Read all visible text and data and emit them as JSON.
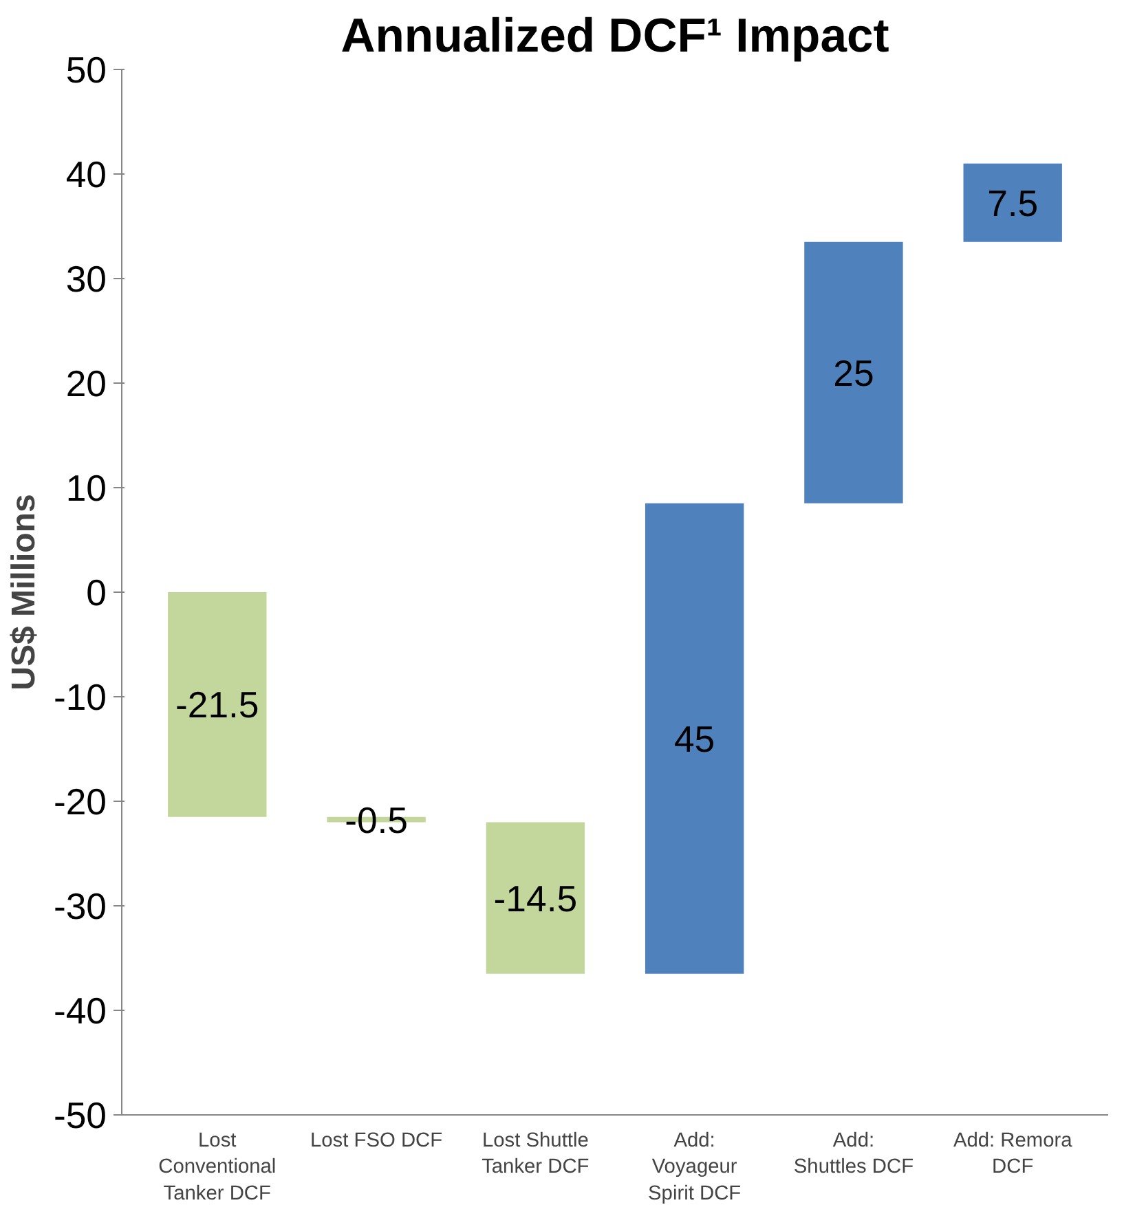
{
  "chart_data": {
    "type": "bar",
    "title": "Annualized DCF¹ Impact",
    "ylabel": "US$ Millions",
    "categories": [
      "Lost Conventional Tanker DCF",
      "Lost FSO DCF",
      "Lost Shuttle Tanker DCF",
      "Add: Voyageur Spirit DCF",
      "Add: Shuttles DCF",
      "Add: Remora DCF"
    ],
    "values": [
      -21.5,
      -0.5,
      -14.5,
      45,
      25,
      7.5
    ],
    "base": [
      0,
      -21.5,
      -22,
      -36.5,
      8.5,
      33.5
    ],
    "colors": [
      "#c3d69b",
      "#c3d69b",
      "#c3d69b",
      "#4f81bd",
      "#4f81bd",
      "#4f81bd"
    ],
    "ylim": [
      -50,
      50
    ],
    "yticks": [
      -50,
      -40,
      -30,
      -20,
      -10,
      0,
      10,
      20,
      30,
      40,
      50
    ],
    "grid": false,
    "data_labels": true
  }
}
